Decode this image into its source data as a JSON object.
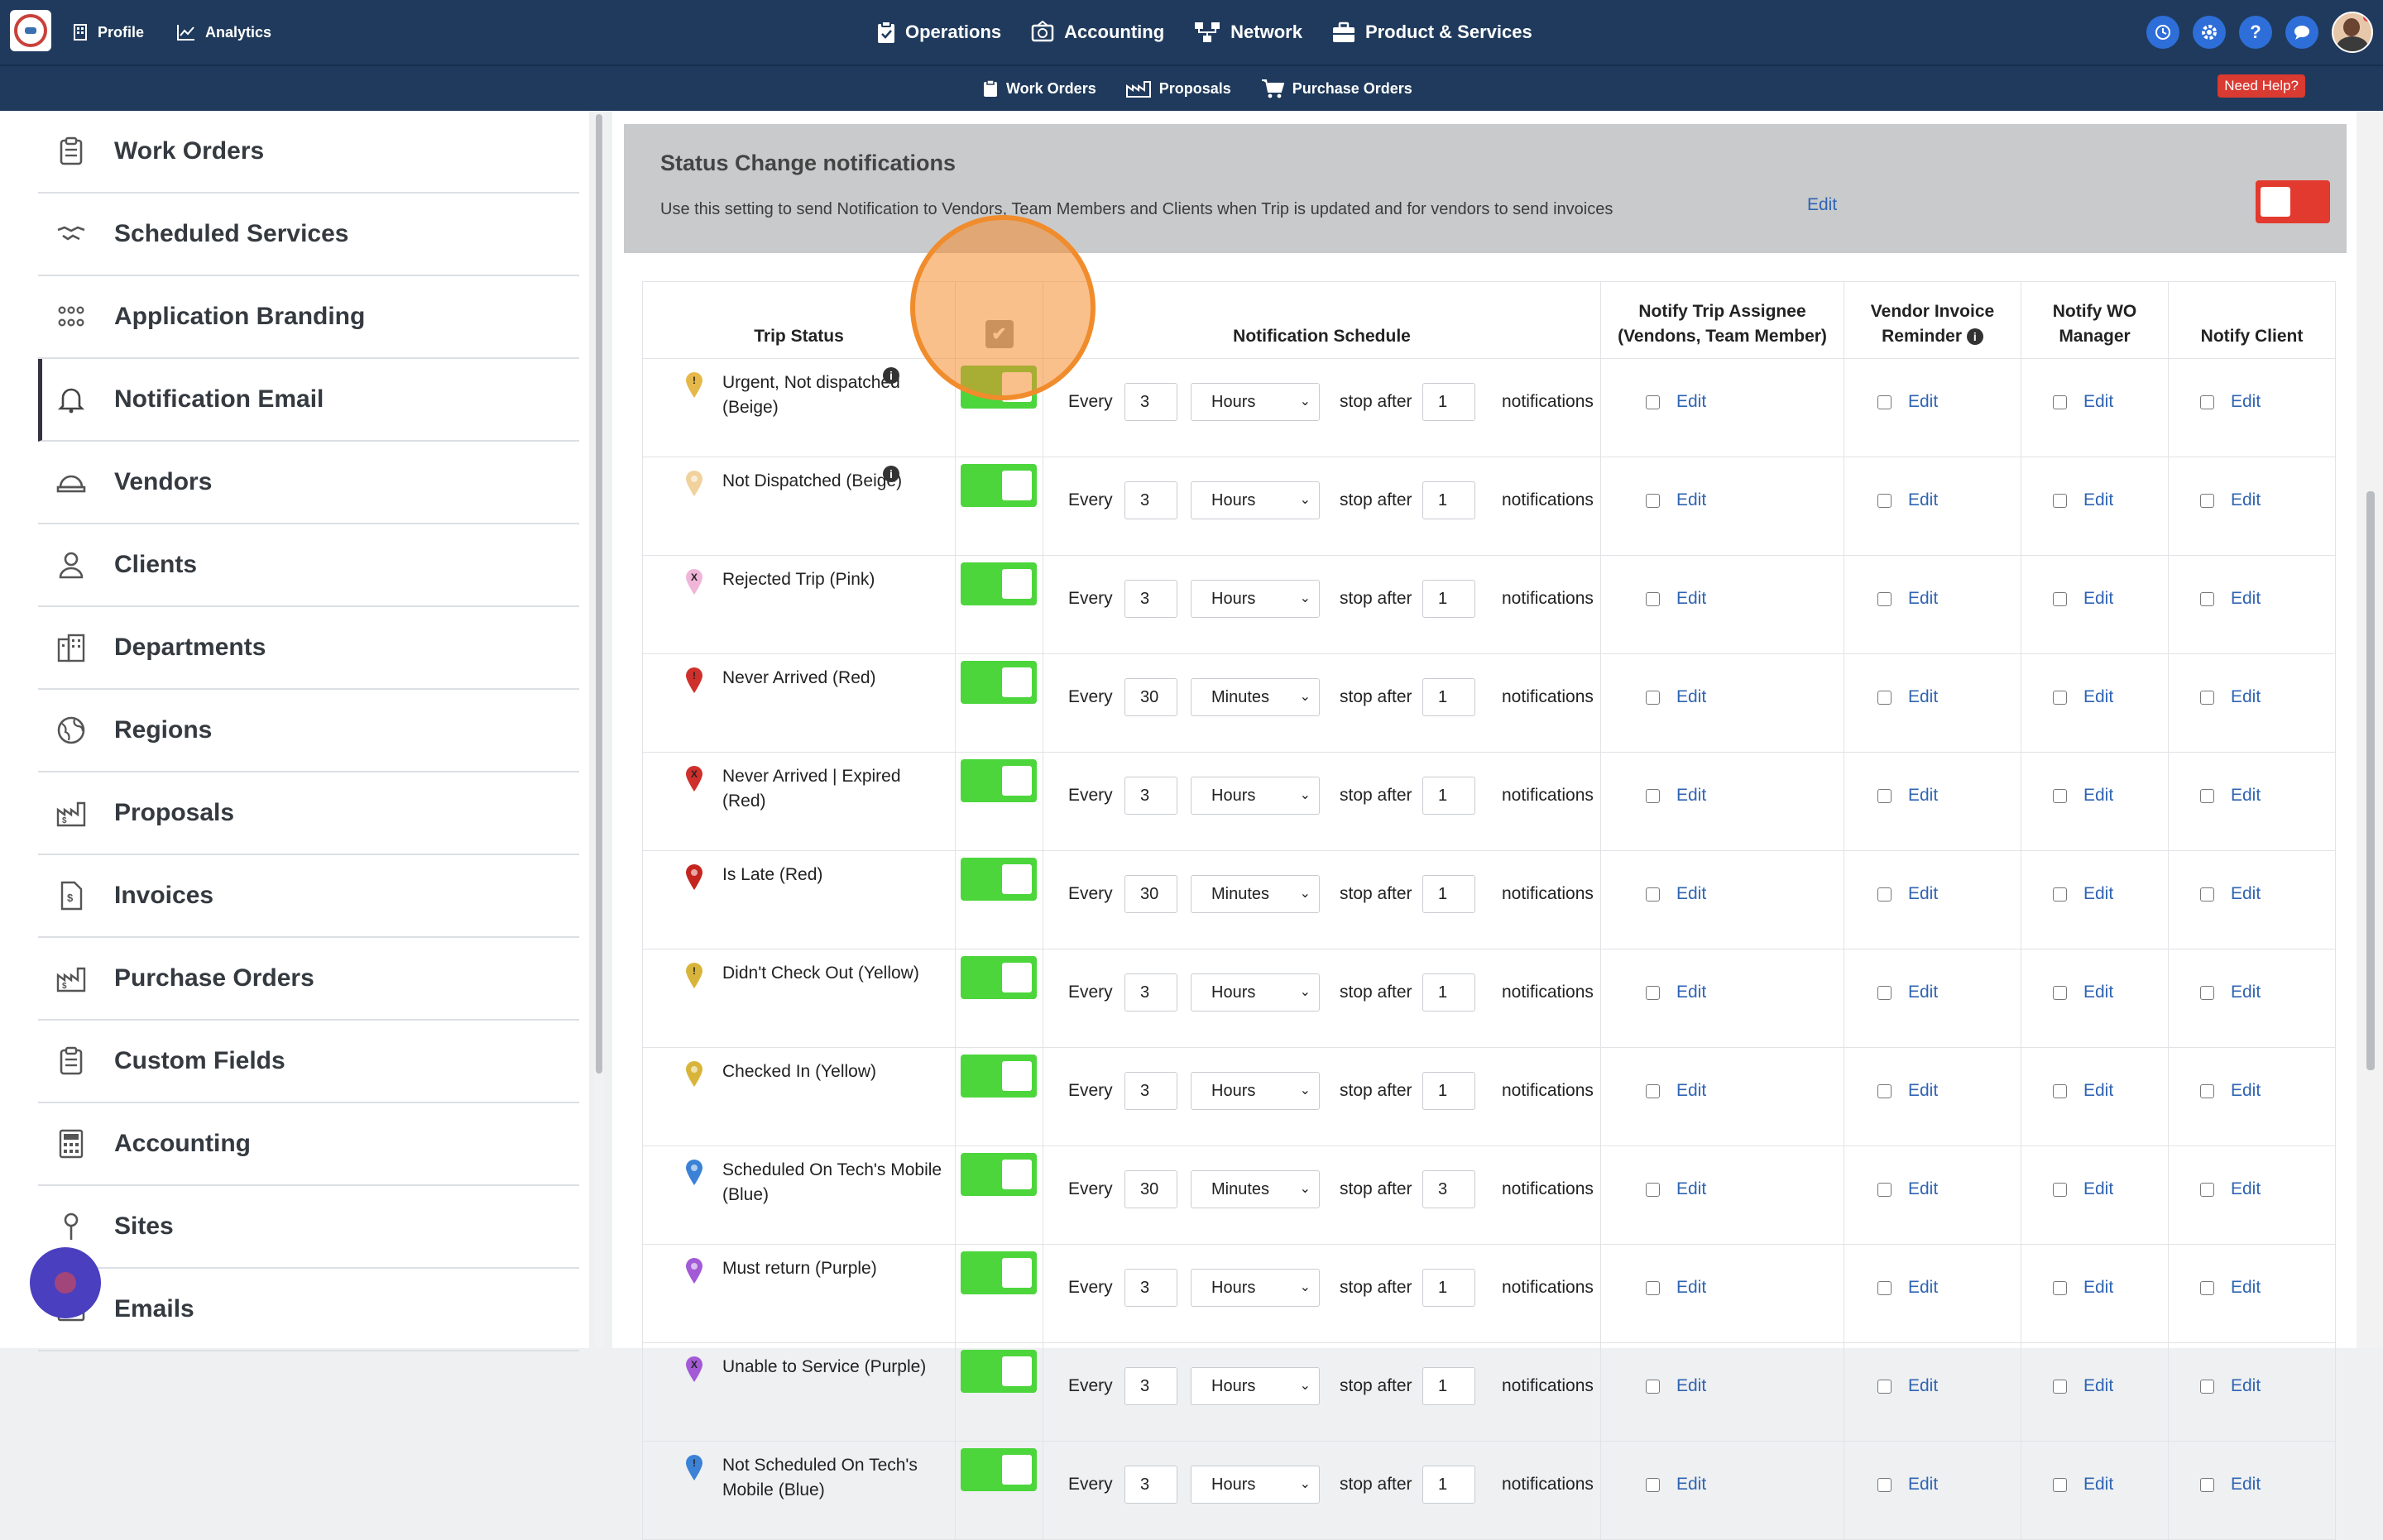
{
  "topnav": {
    "left": [
      {
        "label": "Profile",
        "icon": "building-icon"
      },
      {
        "label": "Analytics",
        "icon": "chart-line-icon"
      }
    ],
    "center": [
      {
        "label": "Operations",
        "icon": "clipboard-icon"
      },
      {
        "label": "Accounting",
        "icon": "money-icon"
      },
      {
        "label": "Network",
        "icon": "network-icon"
      },
      {
        "label": "Product & Services",
        "icon": "briefcase-icon"
      }
    ],
    "right_icons": [
      "sync-icon",
      "gear-icon",
      "help-icon",
      "chat-icon",
      "avatar"
    ]
  },
  "subnav": {
    "items": [
      {
        "label": "Work Orders",
        "icon": "clipboard-icon"
      },
      {
        "label": "Proposals",
        "icon": "proposal-icon"
      },
      {
        "label": "Purchase Orders",
        "icon": "cart-icon"
      }
    ],
    "need_help": "Need Help?"
  },
  "sidebar": {
    "items": [
      {
        "label": "Work Orders",
        "icon": "clipboard-icon"
      },
      {
        "label": "Scheduled Services",
        "icon": "handshake-icon"
      },
      {
        "label": "Application Branding",
        "icon": "people-icon"
      },
      {
        "label": "Notification Email",
        "icon": "bell-icon",
        "active": true
      },
      {
        "label": "Vendors",
        "icon": "hardhat-icon"
      },
      {
        "label": "Clients",
        "icon": "user-icon"
      },
      {
        "label": "Departments",
        "icon": "city-icon"
      },
      {
        "label": "Regions",
        "icon": "globe-icon"
      },
      {
        "label": "Proposals",
        "icon": "proposal-icon"
      },
      {
        "label": "Invoices",
        "icon": "invoice-icon"
      },
      {
        "label": "Purchase Orders",
        "icon": "proposal-icon"
      },
      {
        "label": "Custom Fields",
        "icon": "clipboard-icon"
      },
      {
        "label": "Accounting",
        "icon": "calculator-icon"
      },
      {
        "label": "Sites",
        "icon": "pin-icon"
      },
      {
        "label": "Emails",
        "icon": "email-icon"
      }
    ]
  },
  "status_card": {
    "title": "Status Change notifications",
    "description": "Use this setting to send Notification to Vendors, Team Members and Clients when Trip is updated and for vendors to send invoices",
    "edit": "Edit"
  },
  "table": {
    "headers": {
      "trip_status": "Trip Status",
      "schedule": "Notification Schedule",
      "assignee_1": "Notify Trip Assignee",
      "assignee_2": "(Vendons, Team Member)",
      "invoice_1": "Vendor Invoice",
      "invoice_2": "Reminder",
      "wo_1": "Notify WO",
      "wo_2": "Manager",
      "client": "Notify Client"
    },
    "labels": {
      "every": "Every",
      "stop_after": "stop after",
      "notifications": "notifications",
      "edit": "Edit"
    },
    "rows": [
      {
        "status": "Urgent, Not dispatched (Beige)",
        "pin": "#e6b84a",
        "pin_mark": "!",
        "info": true,
        "every": "3",
        "unit": "Hours",
        "stop": "1"
      },
      {
        "status": "Not Dispatched (Beige)",
        "pin": "#f1d19c",
        "pin_mark": "",
        "info": true,
        "every": "3",
        "unit": "Hours",
        "stop": "1"
      },
      {
        "status": "Rejected Trip (Pink)",
        "pin": "#f0b5d8",
        "pin_mark": "X",
        "info": false,
        "every": "3",
        "unit": "Hours",
        "stop": "1"
      },
      {
        "status": "Never Arrived (Red)",
        "pin": "#d0302b",
        "pin_mark": "!",
        "info": false,
        "every": "30",
        "unit": "Minutes",
        "stop": "1"
      },
      {
        "status": "Never Arrived | Expired (Red)",
        "pin": "#d0302b",
        "pin_mark": "X",
        "info": false,
        "every": "3",
        "unit": "Hours",
        "stop": "1"
      },
      {
        "status": "Is Late (Red)",
        "pin": "#c4261f",
        "pin_mark": "",
        "info": false,
        "every": "30",
        "unit": "Minutes",
        "stop": "1"
      },
      {
        "status": "Didn't Check Out (Yellow)",
        "pin": "#d8b53a",
        "pin_mark": "!",
        "info": false,
        "every": "3",
        "unit": "Hours",
        "stop": "1"
      },
      {
        "status": "Checked In (Yellow)",
        "pin": "#d8b53a",
        "pin_mark": "",
        "info": false,
        "every": "3",
        "unit": "Hours",
        "stop": "1"
      },
      {
        "status": "Scheduled On Tech's Mobile (Blue)",
        "pin": "#3b82d6",
        "pin_mark": "",
        "info": false,
        "every": "30",
        "unit": "Minutes",
        "stop": "3"
      },
      {
        "status": "Must return (Purple)",
        "pin": "#a35ad6",
        "pin_mark": "",
        "info": false,
        "every": "3",
        "unit": "Hours",
        "stop": "1"
      },
      {
        "status": "Unable to Service (Purple)",
        "pin": "#a35ad6",
        "pin_mark": "X",
        "info": false,
        "every": "3",
        "unit": "Hours",
        "stop": "1"
      },
      {
        "status": "Not Scheduled On Tech's Mobile (Blue)",
        "pin": "#3b82d6",
        "pin_mark": "!",
        "info": false,
        "every": "3",
        "unit": "Hours",
        "stop": "1"
      }
    ]
  },
  "colors": {
    "nav": "#1f3a5c",
    "toggle_on": "#4cd63c",
    "toggle_off": "#e23a2e",
    "link": "#2f64b3",
    "highlight": "#f08c2c"
  }
}
